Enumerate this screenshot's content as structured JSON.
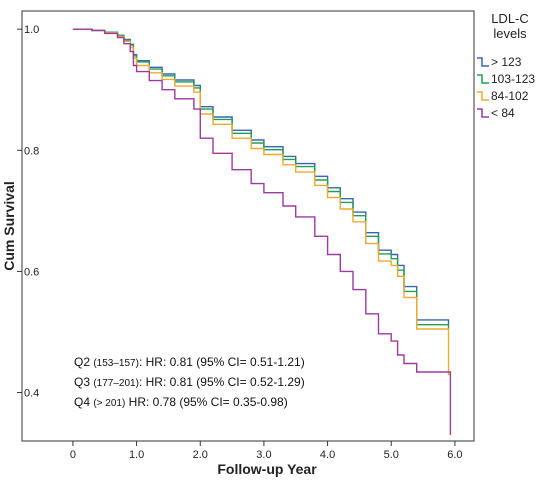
{
  "chart_data": {
    "type": "line",
    "xlabel": "Follow-up Year",
    "ylabel": "Cum Survival",
    "xlim": [
      -0.8,
      6.3
    ],
    "ylim": [
      0.32,
      1.03
    ],
    "xticks": [
      0,
      1,
      2,
      3,
      4,
      5,
      6
    ],
    "xtick_labels": [
      "0",
      "1.0",
      "2.0",
      "3.0",
      "4.0",
      "5.0",
      "6.0"
    ],
    "yticks": [
      0.4,
      0.6,
      0.8,
      1.0
    ],
    "ytick_labels": [
      "0.4",
      "0.6",
      "0.8",
      "1.0"
    ],
    "legend": {
      "title_lines": [
        "LDL-C",
        "levels"
      ],
      "position": "right"
    },
    "series": [
      {
        "name": "> 123",
        "color": "#3b63b0",
        "x": [
          0,
          0.3,
          0.5,
          0.7,
          0.8,
          0.9,
          0.95,
          1.0,
          1.2,
          1.4,
          1.6,
          1.9,
          2.0,
          2.2,
          2.5,
          2.8,
          3.0,
          3.3,
          3.5,
          3.8,
          4.0,
          4.2,
          4.4,
          4.6,
          4.8,
          5.0,
          5.1,
          5.2,
          5.4,
          5.9
        ],
        "y": [
          1.0,
          0.998,
          0.995,
          0.99,
          0.983,
          0.975,
          0.958,
          0.948,
          0.937,
          0.926,
          0.916,
          0.907,
          0.872,
          0.855,
          0.833,
          0.817,
          0.806,
          0.79,
          0.778,
          0.757,
          0.738,
          0.72,
          0.698,
          0.664,
          0.635,
          0.628,
          0.61,
          0.575,
          0.52,
          0.512
        ]
      },
      {
        "name": "103-123",
        "color": "#20a050",
        "x": [
          0,
          0.3,
          0.5,
          0.7,
          0.8,
          0.9,
          0.95,
          1.0,
          1.2,
          1.4,
          1.6,
          1.9,
          2.0,
          2.2,
          2.5,
          2.8,
          3.0,
          3.3,
          3.5,
          3.8,
          4.0,
          4.2,
          4.4,
          4.6,
          4.8,
          5.0,
          5.1,
          5.2,
          5.4,
          5.9
        ],
        "y": [
          1.0,
          0.998,
          0.995,
          0.99,
          0.982,
          0.974,
          0.956,
          0.946,
          0.934,
          0.923,
          0.913,
          0.903,
          0.868,
          0.851,
          0.828,
          0.812,
          0.801,
          0.785,
          0.773,
          0.751,
          0.732,
          0.714,
          0.692,
          0.658,
          0.629,
          0.621,
          0.602,
          0.567,
          0.512,
          0.505
        ]
      },
      {
        "name": "84-102",
        "color": "#f0a830",
        "x": [
          0,
          0.3,
          0.5,
          0.7,
          0.8,
          0.9,
          0.95,
          1.0,
          1.2,
          1.4,
          1.6,
          1.9,
          2.0,
          2.2,
          2.5,
          2.8,
          3.0,
          3.3,
          3.5,
          3.8,
          4.0,
          4.2,
          4.4,
          4.6,
          4.8,
          5.0,
          5.1,
          5.2,
          5.4,
          5.9,
          5.93
        ],
        "y": [
          1.0,
          0.998,
          0.994,
          0.988,
          0.98,
          0.97,
          0.952,
          0.94,
          0.928,
          0.917,
          0.906,
          0.896,
          0.86,
          0.843,
          0.82,
          0.803,
          0.793,
          0.776,
          0.764,
          0.742,
          0.722,
          0.703,
          0.682,
          0.646,
          0.617,
          0.61,
          0.592,
          0.557,
          0.505,
          0.43,
          0.43
        ]
      },
      {
        "name": "< 84",
        "color": "#9b3aa0",
        "x": [
          0,
          0.3,
          0.5,
          0.7,
          0.8,
          0.9,
          0.95,
          1.0,
          1.2,
          1.4,
          1.6,
          1.9,
          2.0,
          2.2,
          2.5,
          2.8,
          3.0,
          3.3,
          3.5,
          3.8,
          4.0,
          4.2,
          4.4,
          4.6,
          4.8,
          5.0,
          5.1,
          5.2,
          5.4,
          5.9,
          5.93
        ],
        "y": [
          1.0,
          0.998,
          0.993,
          0.986,
          0.976,
          0.963,
          0.94,
          0.93,
          0.915,
          0.9,
          0.885,
          0.868,
          0.82,
          0.795,
          0.768,
          0.745,
          0.73,
          0.708,
          0.69,
          0.658,
          0.628,
          0.6,
          0.57,
          0.53,
          0.497,
          0.485,
          0.462,
          0.448,
          0.434,
          0.434,
          0.33
        ]
      }
    ],
    "annotations": [
      {
        "label": "Q2",
        "range": "(153–157)",
        "text": ": HR: 0.81 (95% CI= 0.51-1.21)"
      },
      {
        "label": "Q3",
        "range": "(177–201)",
        "text": ": HR: 0.81 (95% CI= 0.52-1.29)"
      },
      {
        "label": "Q4",
        "range": "(> 201)",
        "text": " HR: 0.78 (95% CI= 0.35-0.98)"
      }
    ]
  }
}
